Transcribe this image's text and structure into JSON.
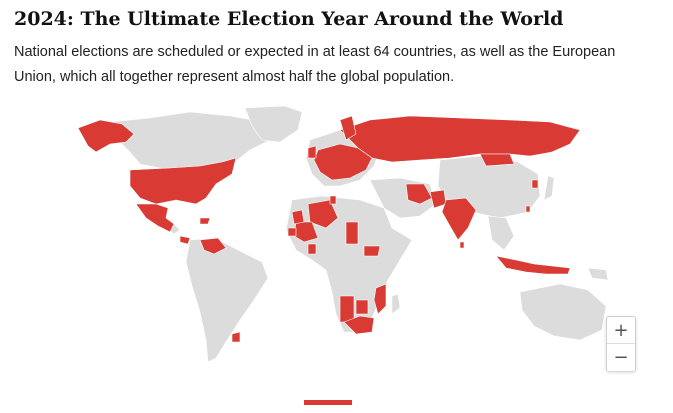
{
  "header": {
    "title": "2024: The Ultimate Election Year Around the World",
    "subtitle": "National elections are scheduled or expected in at least 64 countries, as well as the European Union, which all together represent almost half the global population."
  },
  "map": {
    "colors": {
      "election": "#d93a33",
      "no_election": "#dcdcdc",
      "border": "#ffffff"
    }
  },
  "zoom": {
    "in_label": "+",
    "out_label": "−"
  },
  "footer": {
    "accent_color": "#d93a33"
  }
}
